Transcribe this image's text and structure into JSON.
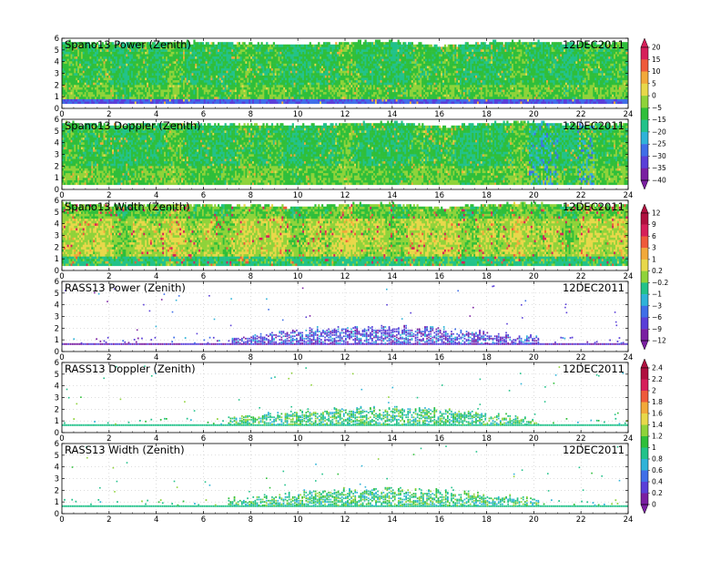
{
  "date_label": "12DEC2011",
  "colors": {
    "field_background": "#ffffff",
    "snr_scale": [
      "#7a1fa2",
      "#5a3fd8",
      "#3f6fe8",
      "#2fb3d8",
      "#22c28a",
      "#2fbf3a",
      "#8fd33a",
      "#e8d84a",
      "#f2a93a",
      "#ef5a3a",
      "#d61f5a"
    ],
    "sym_scale": [
      "#7a1fa2",
      "#5a3fd8",
      "#3f6fe8",
      "#2fb3d8",
      "#22c28a",
      "#2fbf3a",
      "#8fd33a",
      "#e8d84a",
      "#f2a93a",
      "#ef5a3a",
      "#d61f5a",
      "#b0103f"
    ]
  },
  "colorbars": [
    {
      "id": "cb-power-doppler",
      "ticks": [
        "20",
        "15",
        "10",
        "5",
        "0",
        "−5",
        "−15",
        "−20",
        "−25",
        "−30",
        "−35",
        "−40"
      ],
      "scale": "snr_scale"
    },
    {
      "id": "cb-width-rasspower",
      "ticks": [
        "12",
        "9",
        "6",
        "3",
        "1",
        "0.2",
        "−0.2",
        "−1",
        "−3",
        "−6",
        "−9",
        "−12"
      ],
      "scale": "sym_scale"
    },
    {
      "id": "cb-rass",
      "ticks": [
        "2.4",
        "2.2",
        "2",
        "1.8",
        "1.6",
        "1.4",
        "1.2",
        "1",
        "0.8",
        "0.6",
        "0.4",
        "0.2",
        "0"
      ],
      "scale": "sym_scale"
    }
  ],
  "chart_data": [
    {
      "type": "heatmap",
      "title": "Spano13 Power (Zenith)",
      "xlim": [
        0,
        24
      ],
      "ylim": [
        0,
        6
      ],
      "xticks": [
        0,
        2,
        4,
        6,
        8,
        10,
        12,
        14,
        16,
        18,
        20,
        22,
        24
      ],
      "yticks": [
        0,
        1,
        2,
        3,
        4,
        5,
        6
      ],
      "kind": "dense",
      "top_km": [
        6,
        5.8,
        5.9,
        5.9,
        5.8,
        5.7,
        5.9,
        6,
        5.6,
        5.9,
        6,
        5.8,
        5.9
      ],
      "dominant_value": "-15 to -20",
      "band_km": [
        0.4,
        0.7
      ]
    },
    {
      "type": "heatmap",
      "title": "Spano13 Doppler (Zenith)",
      "xlim": [
        0,
        24
      ],
      "ylim": [
        0,
        6
      ],
      "xticks": [
        0,
        2,
        4,
        6,
        8,
        10,
        12,
        14,
        16,
        18,
        20,
        22,
        24
      ],
      "yticks": [
        0,
        1,
        2,
        3,
        4,
        5,
        6
      ],
      "kind": "dense",
      "top_km": [
        6,
        5.8,
        5.9,
        5.9,
        5.8,
        5.7,
        5.9,
        6,
        5.6,
        5.9,
        6,
        5.8,
        5.9
      ],
      "dominant_value": "-15 to -20"
    },
    {
      "type": "heatmap",
      "title": "Spano13 Width (Zenith)",
      "xlim": [
        0,
        24
      ],
      "ylim": [
        0,
        6
      ],
      "xticks": [
        0,
        2,
        4,
        6,
        8,
        10,
        12,
        14,
        16,
        18,
        20,
        22,
        24
      ],
      "yticks": [
        0,
        1,
        2,
        3,
        4,
        5,
        6
      ],
      "kind": "dense_width",
      "top_km": [
        6,
        5.8,
        5.9,
        5.9,
        5.8,
        5.7,
        5.9,
        6,
        5.6,
        5.9,
        6,
        5.8,
        5.9
      ],
      "dominant_value": "1 to 6"
    },
    {
      "type": "heatmap",
      "title": "RASS13 Power (Zenith)",
      "xlim": [
        0,
        24
      ],
      "ylim": [
        0,
        6
      ],
      "xticks": [
        0,
        2,
        4,
        6,
        8,
        10,
        12,
        14,
        16,
        18,
        20,
        22,
        24
      ],
      "yticks": [
        0,
        1,
        2,
        3,
        4,
        5,
        6
      ],
      "kind": "sparse",
      "dominant_value": "-9 to -12"
    },
    {
      "type": "heatmap",
      "title": "RASS13 Doppler (Zenith)",
      "xlim": [
        0,
        24
      ],
      "ylim": [
        0,
        6
      ],
      "xticks": [
        0,
        2,
        4,
        6,
        8,
        10,
        12,
        14,
        16,
        18,
        20,
        22,
        24
      ],
      "yticks": [
        0,
        1,
        2,
        3,
        4,
        5,
        6
      ],
      "kind": "sparse",
      "dominant_value": "0.6 to 1.2"
    },
    {
      "type": "heatmap",
      "title": "RASS13 Width (Zenith)",
      "xlim": [
        0,
        24
      ],
      "ylim": [
        0,
        6
      ],
      "xticks": [
        0,
        2,
        4,
        6,
        8,
        10,
        12,
        14,
        16,
        18,
        20,
        22,
        24
      ],
      "yticks": [
        0,
        1,
        2,
        3,
        4,
        5,
        6
      ],
      "kind": "sparse",
      "dominant_value": "0.6 to 1.2"
    }
  ]
}
